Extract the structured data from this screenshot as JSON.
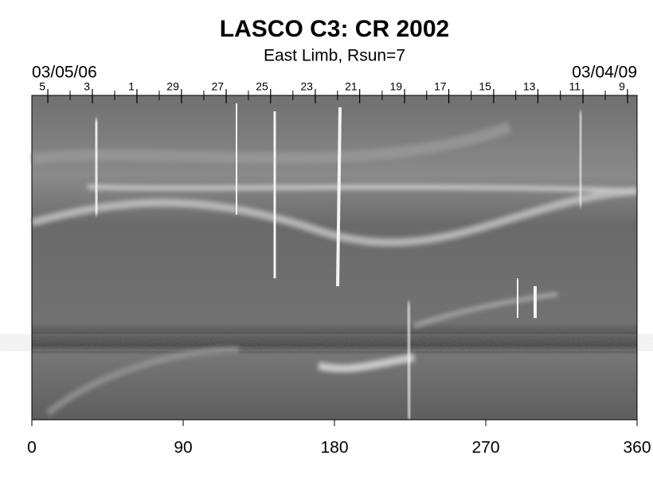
{
  "chart_data": {
    "type": "image",
    "title": "LASCO C3: CR 2002",
    "subtitle": "East Limb, Rsun=7",
    "date_left": "03/05/06",
    "date_right": "03/04/09",
    "xlim": [
      0,
      360
    ],
    "xticks": [
      0,
      90,
      180,
      270,
      360
    ],
    "top_ticks": [
      {
        "value": 9.5,
        "label": "5"
      },
      {
        "value": 36,
        "label": "3"
      },
      {
        "value": 62.5,
        "label": "1"
      },
      {
        "value": 89,
        "label": "29"
      },
      {
        "value": 115.6,
        "label": "27"
      },
      {
        "value": 142,
        "label": "25"
      },
      {
        "value": 168.6,
        "label": "23"
      },
      {
        "value": 195,
        "label": "21"
      },
      {
        "value": 221.7,
        "label": "19"
      },
      {
        "value": 248,
        "label": "17"
      },
      {
        "value": 274.7,
        "label": "15"
      },
      {
        "value": 301,
        "label": "13"
      },
      {
        "value": 327.8,
        "label": "11"
      },
      {
        "value": 354.3,
        "label": "9"
      }
    ]
  }
}
